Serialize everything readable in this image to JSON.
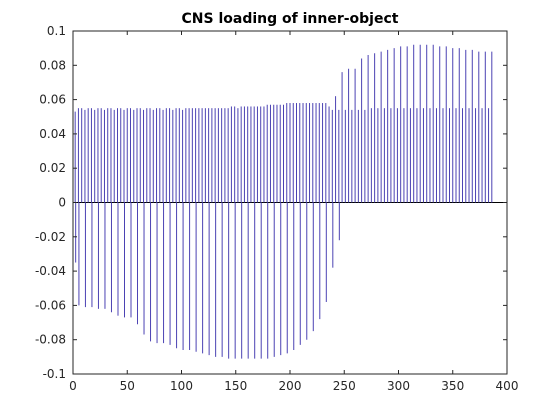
{
  "chart_data": {
    "type": "bar",
    "title": "CNS loading of inner-object",
    "xlabel": "",
    "ylabel": "",
    "xlim": [
      0,
      400
    ],
    "ylim": [
      -0.1,
      0.1
    ],
    "xticks": [
      0,
      50,
      100,
      150,
      200,
      250,
      300,
      350,
      400
    ],
    "yticks": [
      -0.1,
      -0.08,
      -0.06,
      -0.04,
      -0.02,
      0,
      0.02,
      0.04,
      0.06,
      0.08,
      0.1
    ],
    "xtick_labels": [
      "0",
      "50",
      "100",
      "150",
      "200",
      "250",
      "300",
      "350",
      "400"
    ],
    "ytick_labels": [
      "-0.1",
      "-0.08",
      "-0.06",
      "-0.04",
      "-0.02",
      "0",
      "0.02",
      "0.04",
      "0.06",
      "0.08",
      "0.1"
    ],
    "grid": false,
    "color": "#4b42b3",
    "series": [
      {
        "values_description_note": "",
        "x": [
          2,
          5,
          8,
          11,
          14,
          17,
          20,
          23,
          26,
          29,
          32,
          35,
          38,
          41,
          44,
          47,
          50,
          53,
          56,
          59,
          62,
          65,
          68,
          71,
          74,
          77,
          80,
          83,
          86,
          89,
          92,
          95,
          98,
          101,
          104,
          107,
          110,
          113,
          116,
          119,
          122,
          125,
          128,
          131,
          134,
          137,
          140,
          143,
          146,
          149,
          152,
          155,
          158,
          161,
          164,
          167,
          170,
          173,
          176,
          179,
          182,
          185,
          188,
          191,
          194,
          197,
          200,
          203,
          206,
          209,
          212,
          215,
          218,
          221,
          224,
          227,
          230,
          233,
          236,
          239,
          242,
          245,
          248,
          251,
          254,
          257,
          260,
          263,
          266,
          269,
          272,
          275,
          278,
          281,
          284,
          287,
          290,
          293,
          296,
          299,
          302,
          305,
          308,
          311,
          314,
          317,
          320,
          323,
          326,
          329,
          332,
          335,
          338,
          341,
          344,
          347,
          350,
          353,
          356,
          359,
          362,
          365,
          368,
          371,
          374,
          377,
          380,
          383,
          386
        ],
        "pos": [
          0.053,
          0.055,
          0.055,
          0.054,
          0.055,
          0.055,
          0.054,
          0.055,
          0.055,
          0.054,
          0.055,
          0.055,
          0.054,
          0.055,
          0.055,
          0.054,
          0.055,
          0.055,
          0.054,
          0.055,
          0.055,
          0.054,
          0.055,
          0.055,
          0.054,
          0.055,
          0.055,
          0.054,
          0.055,
          0.055,
          0.054,
          0.055,
          0.055,
          0.054,
          0.055,
          0.055,
          0.055,
          0.055,
          0.055,
          0.055,
          0.055,
          0.055,
          0.055,
          0.055,
          0.055,
          0.055,
          0.055,
          0.055,
          0.056,
          0.056,
          0.055,
          0.056,
          0.056,
          0.056,
          0.056,
          0.056,
          0.056,
          0.056,
          0.056,
          0.057,
          0.057,
          0.057,
          0.057,
          0.057,
          0.057,
          0.058,
          0.058,
          0.058,
          0.058,
          0.058,
          0.058,
          0.058,
          0.058,
          0.058,
          0.058,
          0.058,
          0.058,
          0.058,
          0.056,
          0.054,
          0.062,
          0.054,
          0.076,
          0.054,
          0.078,
          0.054,
          0.078,
          0.054,
          0.084,
          0.054,
          0.086,
          0.055,
          0.087,
          0.055,
          0.088,
          0.055,
          0.089,
          0.055,
          0.09,
          0.055,
          0.091,
          0.055,
          0.091,
          0.055,
          0.092,
          0.055,
          0.092,
          0.055,
          0.092,
          0.055,
          0.092,
          0.055,
          0.091,
          0.055,
          0.091,
          0.055,
          0.09,
          0.055,
          0.09,
          0.055,
          0.089,
          0.055,
          0.089,
          0.055,
          0.088,
          0.055,
          0.088,
          0.055,
          0.088
        ],
        "neg": [
          -0.035,
          -0.06,
          0,
          -0.061,
          0,
          -0.061,
          0,
          -0.062,
          0,
          -0.062,
          0,
          -0.064,
          0,
          -0.066,
          0,
          -0.067,
          0,
          -0.067,
          0,
          -0.071,
          0,
          -0.077,
          0,
          -0.081,
          0,
          -0.082,
          0,
          -0.082,
          0,
          -0.083,
          0,
          -0.085,
          0,
          -0.086,
          0,
          -0.086,
          0,
          -0.087,
          0,
          -0.088,
          0,
          -0.089,
          0,
          -0.09,
          0,
          -0.09,
          0,
          -0.091,
          0,
          -0.091,
          0,
          -0.091,
          0,
          -0.091,
          0,
          -0.091,
          0,
          -0.091,
          0,
          -0.091,
          0,
          -0.09,
          0,
          -0.089,
          0,
          -0.088,
          0,
          -0.086,
          0,
          -0.083,
          0,
          -0.08,
          0,
          -0.075,
          0,
          -0.068,
          0,
          -0.058,
          0,
          -0.038,
          0,
          -0.022,
          0,
          0,
          0,
          0,
          0,
          0,
          0,
          0,
          0,
          0,
          0,
          0,
          0,
          0,
          0,
          0,
          0,
          0,
          0,
          0,
          0,
          0,
          0,
          0,
          0,
          0,
          0,
          0,
          0,
          0,
          0,
          0,
          0,
          0,
          0,
          0,
          0,
          0,
          0,
          0,
          0,
          0,
          0,
          0,
          0,
          0,
          0,
          0,
          0,
          0,
          0,
          0,
          0,
          0
        ]
      }
    ]
  }
}
